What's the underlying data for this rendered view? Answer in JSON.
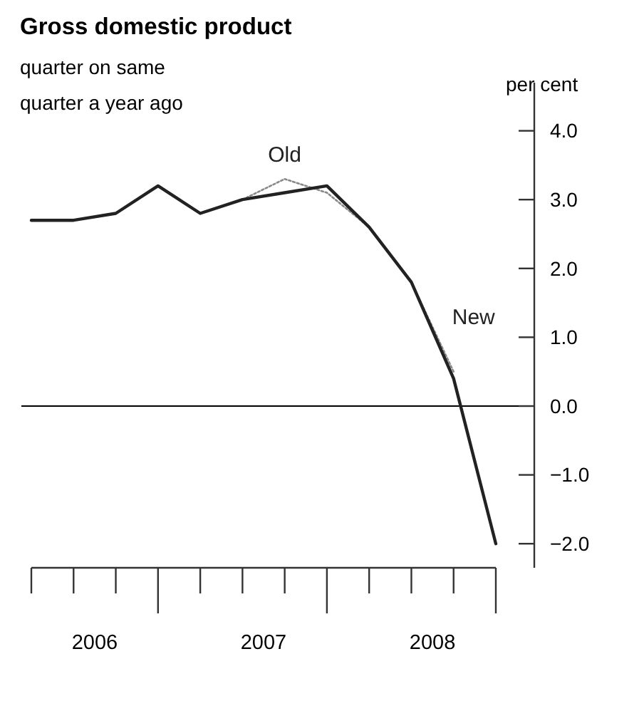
{
  "chart_data": {
    "type": "line",
    "title": "Gross domestic product",
    "subtitle": "quarter on same quarter a year ago",
    "ylabel": "per cent",
    "categories": [
      null,
      null,
      null,
      null,
      null,
      null,
      null,
      null,
      null,
      null,
      null,
      null
    ],
    "annotations": [
      "2006",
      "2007",
      "2008"
    ],
    "series": [
      {
        "name": "Old",
        "color": "#888888",
        "line_style": "dotted",
        "values": [
          null,
          null,
          null,
          null,
          null,
          3.0,
          3.3,
          3.1,
          2.6,
          1.8,
          0.5,
          null
        ]
      },
      {
        "name": "New",
        "color": "#222222",
        "line_style": "solid",
        "values": [
          2.7,
          2.7,
          2.8,
          3.2,
          2.8,
          3.0,
          3.1,
          3.2,
          2.6,
          1.8,
          0.4,
          -2.0
        ]
      }
    ],
    "ylim": [
      -2.35,
      4.7
    ],
    "yticks": [
      {
        "value": -2,
        "label": "−2.0"
      },
      {
        "value": -1,
        "label": "−1.0"
      },
      {
        "value": 0,
        "label": "0.0"
      },
      {
        "value": 1,
        "label": "1.0"
      },
      {
        "value": 2,
        "label": "2.0"
      },
      {
        "value": 3,
        "label": "3.0"
      },
      {
        "value": 4,
        "label": "4.0"
      }
    ],
    "ref_lines": [
      {
        "axis": "y",
        "value": 0,
        "color": "#000000"
      }
    ],
    "grid": false,
    "legend": false,
    "marker": "none"
  }
}
